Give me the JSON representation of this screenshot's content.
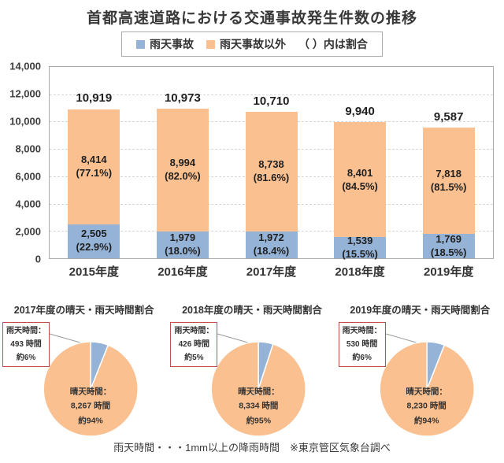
{
  "title": "首都高速道路における交通事故発生件数の推移",
  "legend": {
    "items": [
      {
        "label": "雨天事故",
        "color": "#95B3D7"
      },
      {
        "label": "雨天事故以外",
        "color": "#FAC090"
      }
    ],
    "note": "（ ）内は割合"
  },
  "footnote": "雨天時間・・・1mm以上の降雨時間　※東京管区気象台調べ",
  "colors": {
    "rain_blue": "#95B3D7",
    "clear_orange": "#FAC090",
    "callout_border": "#C0504D",
    "grid": "#D6D6D6",
    "plot_border": "#ABABAB"
  },
  "chart_data": [
    {
      "type": "bar",
      "stacked": true,
      "title": "首都高速道路における交通事故発生件数の推移",
      "categories": [
        "2015年度",
        "2016年度",
        "2017年度",
        "2018年度",
        "2019年度"
      ],
      "series": [
        {
          "name": "雨天事故",
          "color": "#95B3D7",
          "values": [
            2505,
            1979,
            1972,
            1539,
            1769
          ],
          "value_labels": [
            "2,505",
            "1,979",
            "1,972",
            "1,539",
            "1,769"
          ],
          "pct_labels": [
            "(22.9%)",
            "(18.0%)",
            "(18.4%)",
            "(15.5%)",
            "(18.5%)"
          ]
        },
        {
          "name": "雨天事故以外",
          "color": "#FAC090",
          "values": [
            8414,
            8994,
            8738,
            8401,
            7818
          ],
          "value_labels": [
            "8,414",
            "8,994",
            "8,738",
            "8,401",
            "7,818"
          ],
          "pct_labels": [
            "(77.1%)",
            "(82.0%)",
            "(81.6%)",
            "(84.5%)",
            "(81.5%)"
          ]
        }
      ],
      "totals": [
        10919,
        10973,
        10710,
        9940,
        9587
      ],
      "total_labels": [
        "10,919",
        "10,973",
        "10,710",
        "9,940",
        "9,587"
      ],
      "xlabel": "",
      "ylabel": "",
      "ylim": [
        0,
        14000
      ],
      "ytick_step": 2000,
      "ytick_labels": [
        "14,000",
        "12,000",
        "10,000",
        "8,000",
        "6,000",
        "4,000",
        "2,000",
        "0"
      ],
      "grid": true,
      "legend_position": "top"
    },
    {
      "type": "pie",
      "title": "2017年度の晴天・雨天時間割合",
      "slices": [
        {
          "name": "雨天時間",
          "color": "#95B3D7",
          "value_pct": 6,
          "hours": 493,
          "callout_lines": [
            "雨天時間：",
            "493 時間",
            "約6%"
          ]
        },
        {
          "name": "晴天時間",
          "color": "#FAC090",
          "value_pct": 94,
          "hours": 8267,
          "label_lines": [
            "晴天時間：",
            "8,267 時間",
            "約94%"
          ]
        }
      ]
    },
    {
      "type": "pie",
      "title": "2018年度の晴天・雨天時間割合",
      "slices": [
        {
          "name": "雨天時間",
          "color": "#95B3D7",
          "value_pct": 5,
          "hours": 426,
          "callout_lines": [
            "雨天時間：",
            "426 時間",
            "約5%"
          ]
        },
        {
          "name": "晴天時間",
          "color": "#FAC090",
          "value_pct": 95,
          "hours": 8334,
          "label_lines": [
            "晴天時間：",
            "8,334 時間",
            "約95%"
          ]
        }
      ]
    },
    {
      "type": "pie",
      "title": "2019年度の晴天・雨天時間割合",
      "slices": [
        {
          "name": "雨天時間",
          "color": "#95B3D7",
          "value_pct": 6,
          "hours": 530,
          "callout_lines": [
            "雨天時間：",
            "530 時間",
            "約6%"
          ]
        },
        {
          "name": "晴天時間",
          "color": "#FAC090",
          "value_pct": 94,
          "hours": 8230,
          "label_lines": [
            "晴天時間：",
            "8,230 時間",
            "約94%"
          ]
        }
      ]
    }
  ]
}
